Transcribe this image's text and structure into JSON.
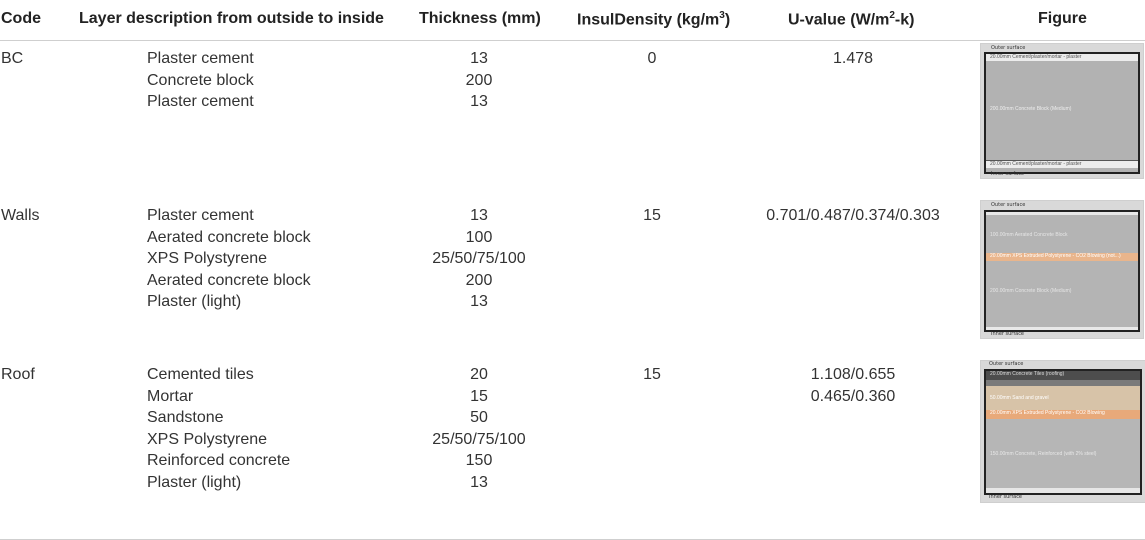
{
  "headers": {
    "code": "Code",
    "layer": "Layer description from outside to inside",
    "thickness": "Thickness (mm)",
    "density_prefix": "InsulDensity (kg/m",
    "density_sup": "3",
    "density_suffix": ")",
    "uvalue_prefix": "U-value (W/m",
    "uvalue_sup": "2",
    "uvalue_suffix": "-k)",
    "figure": "Figure"
  },
  "rows": [
    {
      "code": "BC",
      "layers": [
        "Plaster cement",
        "Concrete block",
        "Plaster cement"
      ],
      "thickness": [
        "13",
        "200",
        "13"
      ],
      "density": "0",
      "uvalue": [
        "1.478"
      ],
      "figure": {
        "outer": "Outer surface",
        "inner": "Inner surface",
        "bands": [
          "20.00mm  Cement/plaster/mortar - plaster",
          "200.00mm  Concrete Block (Medium)",
          "20.00mm  Cement/plaster/mortar - plaster"
        ]
      }
    },
    {
      "code": "Walls",
      "layers": [
        "Plaster cement",
        "Aerated concrete block",
        "XPS Polystyrene",
        "Aerated concrete block",
        "Plaster (light)"
      ],
      "thickness": [
        "13",
        "100",
        "25/50/75/100",
        "200",
        "13"
      ],
      "density": "15",
      "uvalue": [
        "0.701/0.487/0.374/0.303"
      ],
      "figure": {
        "outer": "Outer surface",
        "inner": "Inner surface",
        "bands": [
          "100.00mm  Aerated Concrete Block",
          "20.00mm  XPS Extruded Polystyrene - CO2 Blowing (not...)",
          "200.00mm  Concrete Block (Medium)"
        ]
      }
    },
    {
      "code": "Roof",
      "layers": [
        "Cemented tiles",
        "Mortar",
        "Sandstone",
        "XPS Polystyrene",
        "Reinforced concrete",
        "Plaster (light)"
      ],
      "thickness": [
        "20",
        "15",
        "50",
        "25/50/75/100",
        "150",
        "13"
      ],
      "density": "15",
      "uvalue": [
        "1.108/0.655",
        "0.465/0.360"
      ],
      "figure": {
        "outer": "Outer surface",
        "inner": "Inner surface",
        "bands": [
          "20.00mm  Concrete Tiles (roofing)",
          "50.00mm  Sand and gravel",
          "20.00mm  XPS Extruded Polystyrene - CO2 Blowing",
          "150.00mm  Concrete, Reinforced (with 2% steel)"
        ]
      }
    }
  ]
}
